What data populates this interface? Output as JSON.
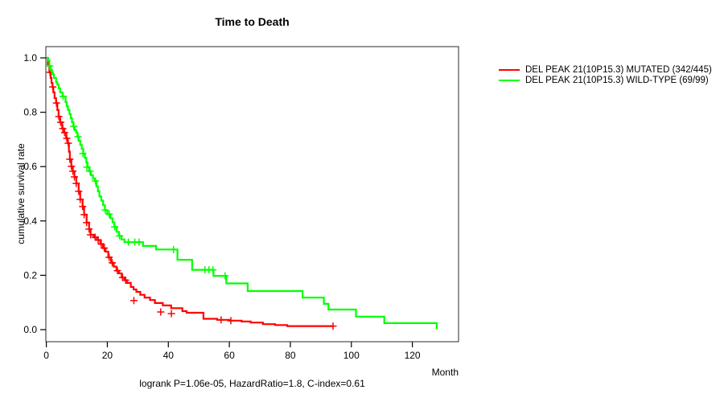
{
  "title": "Time to Death",
  "y_axis_label": "cumulative survival rate",
  "x_axis_label": "Month",
  "footer": "logrank P=1.06e-05, HazardRatio=1.8, C-index=0.61",
  "legend": {
    "position": "right-outside",
    "items": [
      {
        "label": "DEL PEAK 21(10P15.3) MUTATED (342/445)",
        "color": "#ff0000"
      },
      {
        "label": "DEL PEAK 21(10P15.3) WILD-TYPE (69/99)",
        "color": "#00ff00"
      }
    ]
  },
  "chart_data": {
    "type": "line",
    "subtype": "kaplan-meier-step",
    "title": "Time to Death",
    "xlabel": "Month",
    "ylabel": "cumulative survival rate",
    "xlim": [
      0,
      135
    ],
    "ylim": [
      0.0,
      1.0
    ],
    "x_ticks": [
      0,
      20,
      40,
      60,
      80,
      100,
      120
    ],
    "y_ticks": [
      0.0,
      0.2,
      0.4,
      0.6,
      0.8,
      1.0
    ],
    "grid": false,
    "box": true,
    "annotation": "logrank P=1.06e-05, HazardRatio=1.8, C-index=0.61",
    "series": [
      {
        "name": "DEL PEAK 21(10P15.3) MUTATED (342/445)",
        "color": "#ff0000",
        "steps": [
          [
            0,
            1.0
          ],
          [
            0.5,
            0.976
          ],
          [
            1,
            0.947
          ],
          [
            1.4,
            0.926
          ],
          [
            1.7,
            0.908
          ],
          [
            2,
            0.893
          ],
          [
            2.3,
            0.873
          ],
          [
            2.7,
            0.852
          ],
          [
            3.2,
            0.834
          ],
          [
            3.6,
            0.808
          ],
          [
            4,
            0.784
          ],
          [
            4.5,
            0.763
          ],
          [
            5.2,
            0.74
          ],
          [
            5.8,
            0.725
          ],
          [
            6.5,
            0.704
          ],
          [
            7,
            0.686
          ],
          [
            7.4,
            0.655
          ],
          [
            7.7,
            0.627
          ],
          [
            8.2,
            0.601
          ],
          [
            8.7,
            0.583
          ],
          [
            9.2,
            0.562
          ],
          [
            9.8,
            0.538
          ],
          [
            10.6,
            0.509
          ],
          [
            11.1,
            0.479
          ],
          [
            11.9,
            0.453
          ],
          [
            12.4,
            0.423
          ],
          [
            13.2,
            0.394
          ],
          [
            14,
            0.37
          ],
          [
            14.5,
            0.349
          ],
          [
            15.5,
            0.34
          ],
          [
            16.6,
            0.33
          ],
          [
            17.7,
            0.315
          ],
          [
            18.6,
            0.3
          ],
          [
            19.4,
            0.287
          ],
          [
            20.3,
            0.266
          ],
          [
            21.2,
            0.246
          ],
          [
            22.1,
            0.232
          ],
          [
            23,
            0.217
          ],
          [
            23.8,
            0.207
          ],
          [
            24.7,
            0.192
          ],
          [
            25.6,
            0.182
          ],
          [
            26.4,
            0.172
          ],
          [
            27.7,
            0.157
          ],
          [
            28.6,
            0.148
          ],
          [
            29.5,
            0.139
          ],
          [
            30.8,
            0.128
          ],
          [
            32.2,
            0.118
          ],
          [
            34,
            0.109
          ],
          [
            35.6,
            0.098
          ],
          [
            38.2,
            0.089
          ],
          [
            40.9,
            0.079
          ],
          [
            44.6,
            0.068
          ],
          [
            46,
            0.062
          ],
          [
            51.5,
            0.04
          ],
          [
            56,
            0.036
          ],
          [
            60,
            0.033
          ],
          [
            64,
            0.03
          ],
          [
            67,
            0.026
          ],
          [
            71,
            0.02
          ],
          [
            75,
            0.017
          ],
          [
            79,
            0.013
          ],
          [
            94,
            0.013
          ]
        ],
        "censors": [
          [
            1.2,
            0.947
          ],
          [
            2.1,
            0.893
          ],
          [
            3.3,
            0.834
          ],
          [
            4.1,
            0.784
          ],
          [
            4.7,
            0.763
          ],
          [
            5.4,
            0.74
          ],
          [
            6,
            0.725
          ],
          [
            6.7,
            0.704
          ],
          [
            7.2,
            0.686
          ],
          [
            7.7,
            0.627
          ],
          [
            8.2,
            0.601
          ],
          [
            8.7,
            0.583
          ],
          [
            9.2,
            0.562
          ],
          [
            9.8,
            0.538
          ],
          [
            10.6,
            0.509
          ],
          [
            11.1,
            0.479
          ],
          [
            11.9,
            0.453
          ],
          [
            12.4,
            0.423
          ],
          [
            13.2,
            0.394
          ],
          [
            14,
            0.37
          ],
          [
            14.5,
            0.349
          ],
          [
            16,
            0.34
          ],
          [
            17,
            0.33
          ],
          [
            18,
            0.315
          ],
          [
            19,
            0.3
          ],
          [
            20.6,
            0.266
          ],
          [
            21.6,
            0.246
          ],
          [
            23.3,
            0.217
          ],
          [
            25,
            0.192
          ],
          [
            26,
            0.182
          ],
          [
            28.7,
            0.107
          ],
          [
            37.5,
            0.065
          ],
          [
            41,
            0.059
          ],
          [
            57.3,
            0.036
          ],
          [
            60.5,
            0.033
          ],
          [
            94,
            0.013
          ]
        ]
      },
      {
        "name": "DEL PEAK 21(10P15.3) WILD-TYPE (69/99)",
        "color": "#00ff00",
        "steps": [
          [
            0,
            1.0
          ],
          [
            0.6,
            0.99
          ],
          [
            1,
            0.97
          ],
          [
            1.4,
            0.956
          ],
          [
            1.9,
            0.94
          ],
          [
            2.5,
            0.926
          ],
          [
            3.2,
            0.91
          ],
          [
            3.6,
            0.902
          ],
          [
            4,
            0.888
          ],
          [
            4.5,
            0.873
          ],
          [
            5.3,
            0.858
          ],
          [
            6.3,
            0.837
          ],
          [
            6.7,
            0.822
          ],
          [
            7.1,
            0.808
          ],
          [
            7.6,
            0.793
          ],
          [
            8,
            0.778
          ],
          [
            8.4,
            0.763
          ],
          [
            8.9,
            0.748
          ],
          [
            9.3,
            0.734
          ],
          [
            9.8,
            0.725
          ],
          [
            10.2,
            0.71
          ],
          [
            10.6,
            0.695
          ],
          [
            11.1,
            0.68
          ],
          [
            11.6,
            0.665
          ],
          [
            12.1,
            0.648
          ],
          [
            12.6,
            0.632
          ],
          [
            13.1,
            0.615
          ],
          [
            13.5,
            0.598
          ],
          [
            14,
            0.583
          ],
          [
            14.6,
            0.568
          ],
          [
            15.3,
            0.556
          ],
          [
            15.9,
            0.547
          ],
          [
            16.4,
            0.527
          ],
          [
            16.9,
            0.509
          ],
          [
            17.4,
            0.49
          ],
          [
            18,
            0.475
          ],
          [
            18.6,
            0.458
          ],
          [
            19.2,
            0.44
          ],
          [
            20,
            0.425
          ],
          [
            21,
            0.41
          ],
          [
            21.7,
            0.395
          ],
          [
            22.3,
            0.378
          ],
          [
            23,
            0.36
          ],
          [
            23.8,
            0.345
          ],
          [
            24.6,
            0.332
          ],
          [
            25.6,
            0.322
          ],
          [
            31.7,
            0.308
          ],
          [
            36,
            0.295
          ],
          [
            43,
            0.257
          ],
          [
            47.8,
            0.22
          ],
          [
            54.8,
            0.198
          ],
          [
            59,
            0.17
          ],
          [
            66,
            0.142
          ],
          [
            84,
            0.118
          ],
          [
            91,
            0.095
          ],
          [
            92.5,
            0.074
          ],
          [
            101.5,
            0.048
          ],
          [
            110.8,
            0.024
          ],
          [
            128,
            0.002
          ]
        ],
        "censors": [
          [
            1.1,
            0.97
          ],
          [
            5.5,
            0.858
          ],
          [
            9,
            0.748
          ],
          [
            10.4,
            0.71
          ],
          [
            12,
            0.648
          ],
          [
            13.3,
            0.598
          ],
          [
            14.3,
            0.583
          ],
          [
            16.1,
            0.547
          ],
          [
            19.3,
            0.44
          ],
          [
            20.6,
            0.425
          ],
          [
            22.4,
            0.378
          ],
          [
            24,
            0.345
          ],
          [
            26.9,
            0.322
          ],
          [
            29,
            0.322
          ],
          [
            30.4,
            0.322
          ],
          [
            41.7,
            0.295
          ],
          [
            52,
            0.22
          ],
          [
            53.3,
            0.22
          ],
          [
            54.6,
            0.22
          ],
          [
            58.6,
            0.198
          ]
        ]
      }
    ]
  }
}
